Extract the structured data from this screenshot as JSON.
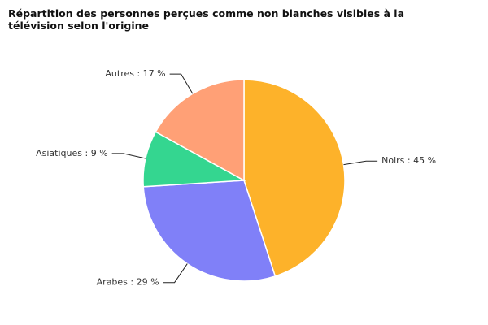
{
  "chart_data": {
    "type": "pie",
    "title": "Répartition des personnes perçues comme non blanches visibles à la télévision selon l'origine",
    "values": [
      45,
      29,
      9,
      17
    ],
    "value_labels": [
      "Noirs : 45 %",
      "Arabes : 29 %",
      "Asiatiques : 9 %",
      "Autres : 17 %"
    ],
    "colors": [
      "#fdb22a",
      "#8080f8",
      "#34d690",
      "#ffa076"
    ]
  }
}
